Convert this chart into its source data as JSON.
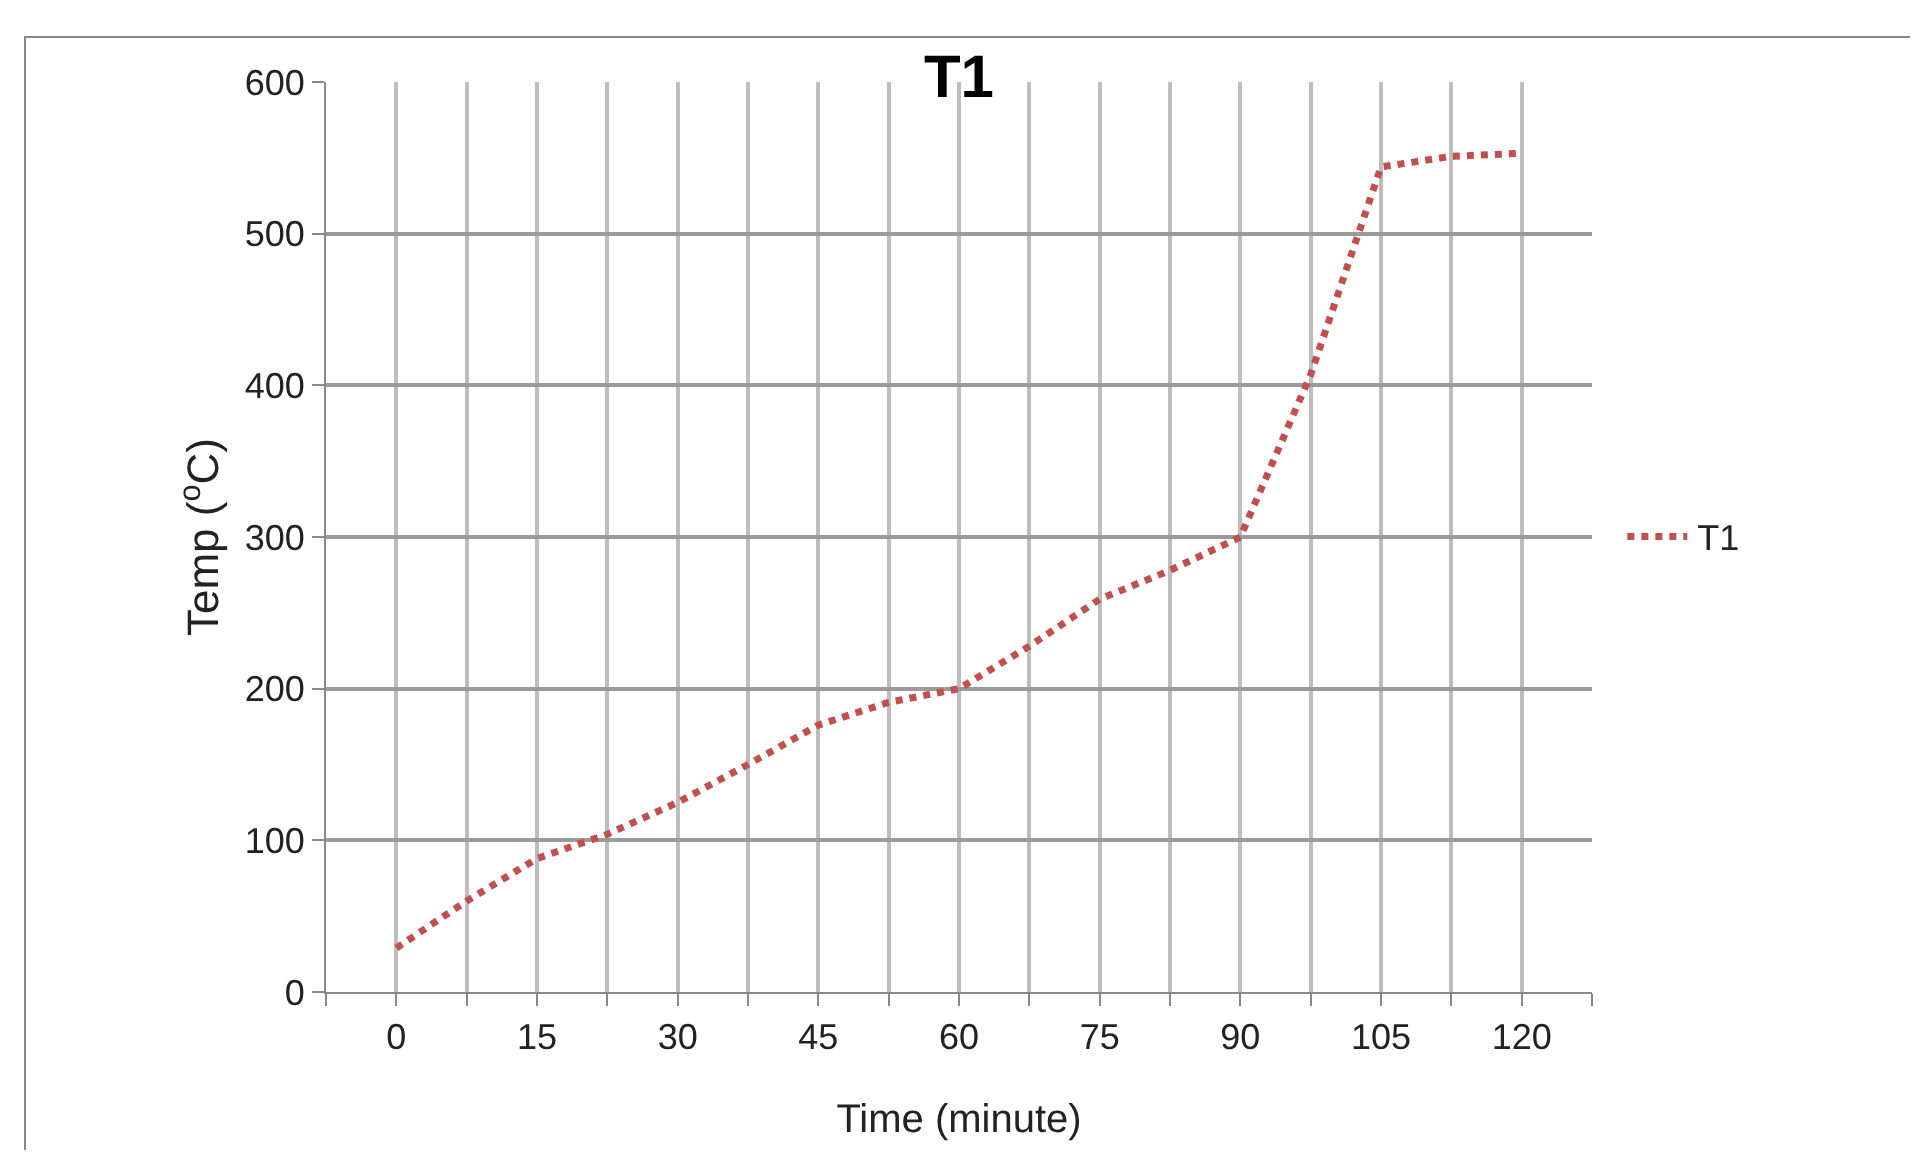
{
  "chart_data": {
    "type": "line",
    "title": "T1",
    "xlabel": "Time (minute)",
    "ylabel": "Temp ($^{o}$C)",
    "x": [
      0,
      7.5,
      15,
      22.5,
      30,
      37.5,
      45,
      52.5,
      60,
      67.5,
      75,
      82.5,
      90,
      97.5,
      105,
      112.5,
      120
    ],
    "series": [
      {
        "name": "T1",
        "color": "#c0504d",
        "values": [
          29,
          60,
          88,
          104,
          125,
          150,
          176,
          191,
          200,
          228,
          259,
          278,
          300,
          407,
          544,
          551,
          553
        ]
      }
    ],
    "xlim": [
      -7.5,
      127.5
    ],
    "xticks": [
      {
        "value": -7.5,
        "label": null
      },
      0,
      {
        "value": 7.5,
        "label": null
      },
      15,
      {
        "value": 22.5,
        "label": null
      },
      30,
      {
        "value": 37.5,
        "label": null
      },
      45,
      {
        "value": 52.5,
        "label": null
      },
      60,
      {
        "value": 67.5,
        "label": null
      },
      75,
      {
        "value": 82.5,
        "label": null
      },
      90,
      {
        "value": 97.5,
        "label": null
      },
      105,
      {
        "value": 112.5,
        "label": null
      },
      120,
      {
        "value": 127.5,
        "label": null
      }
    ],
    "ylim": [
      0,
      600
    ],
    "yticks": [
      0,
      100,
      200,
      300,
      400,
      500,
      600
    ],
    "grid": true,
    "legend": "right",
    "marker": "none",
    "line_style": "dotted"
  }
}
